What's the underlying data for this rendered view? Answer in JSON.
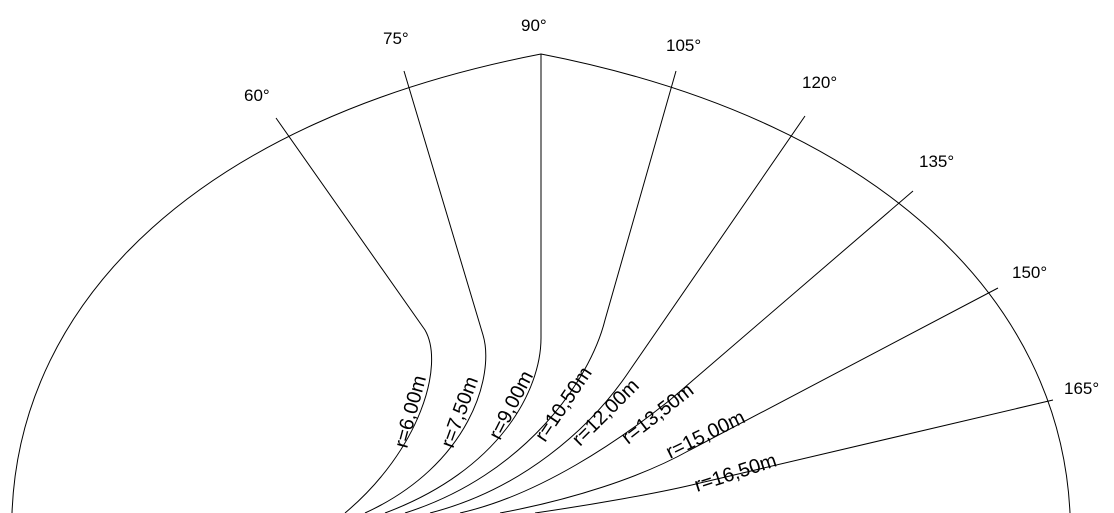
{
  "angle_labels": [
    "60°",
    "75°",
    "90°",
    "105°",
    "120°",
    "135°",
    "150°",
    "165°"
  ],
  "radius_labels": [
    "r=6,00m",
    "r=7,50m",
    "r=9,00m",
    "r=10,50m",
    "r=12,00m",
    "r=13,50m",
    "r=15,00m",
    "r=16,50m"
  ],
  "colors": {
    "line": "#000000",
    "background": "#ffffff"
  }
}
